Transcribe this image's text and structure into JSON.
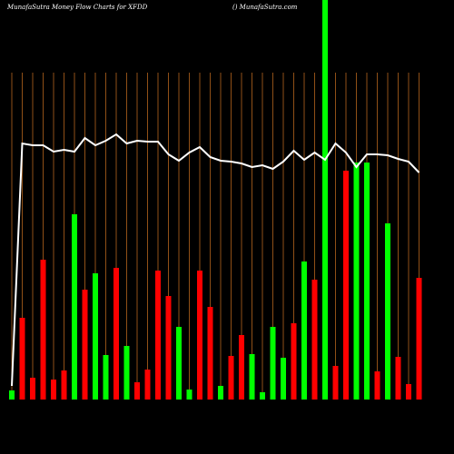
{
  "chart_data": {
    "type": "bar",
    "title": "MunafaSutra  Money Flow  Charts for XFDD",
    "subtitle": "() MunafaSutra.com",
    "ylim": [
      0,
      440
    ],
    "values": [
      10,
      90,
      24,
      154,
      22,
      32,
      204,
      121,
      139,
      49,
      145,
      59,
      19,
      33,
      142,
      114,
      80,
      11,
      142,
      102,
      15,
      48,
      71,
      50,
      8,
      80,
      46,
      84,
      152,
      132,
      440,
      37,
      252,
      261,
      261,
      31,
      194,
      47,
      17,
      134
    ],
    "colors": [
      "#00ff00",
      "#ff0000",
      "#ff0000",
      "#ff0000",
      "#ff0000",
      "#ff0000",
      "#00ff00",
      "#ff0000",
      "#00ff00",
      "#00ff00",
      "#ff0000",
      "#00ff00",
      "#ff0000",
      "#ff0000",
      "#ff0000",
      "#ff0000",
      "#00ff00",
      "#00ff00",
      "#ff0000",
      "#ff0000",
      "#00ff00",
      "#ff0000",
      "#ff0000",
      "#00ff00",
      "#00ff00",
      "#00ff00",
      "#00ff00",
      "#ff0000",
      "#00ff00",
      "#ff0000",
      "#00ff00",
      "#ff0000",
      "#ff0000",
      "#00ff00",
      "#00ff00",
      "#ff0000",
      "#00ff00",
      "#ff0000",
      "#ff0000",
      "#ff0000"
    ],
    "line_values": [
      15,
      282,
      280,
      280,
      273,
      275,
      273,
      288,
      280,
      285,
      292,
      282,
      285,
      284,
      284,
      270,
      263,
      272,
      278,
      267,
      263,
      262,
      260,
      256,
      258,
      254,
      262,
      274,
      264,
      272,
      264,
      282,
      272,
      256,
      270,
      270,
      269,
      265,
      262,
      250
    ],
    "line_color": "#ffffff",
    "grid_color": "#b5651d"
  }
}
